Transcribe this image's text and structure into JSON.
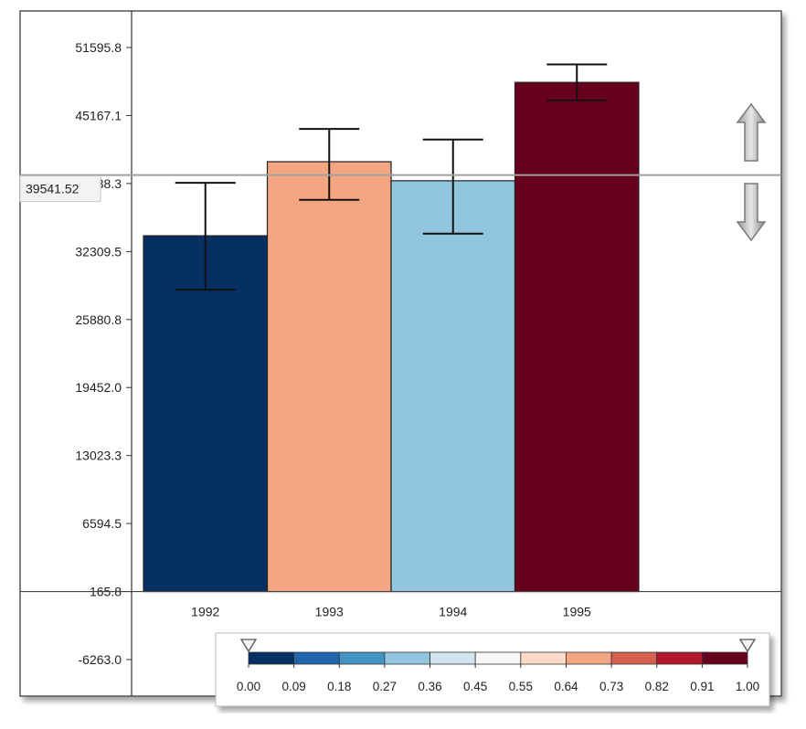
{
  "chart_data": {
    "type": "bar",
    "categories": [
      "1992",
      "1993",
      "1994",
      "1995"
    ],
    "values": [
      33800,
      40800,
      39000,
      48300
    ],
    "error_low": [
      28700,
      37200,
      34000,
      46600
    ],
    "error_high": [
      38800,
      43900,
      42900,
      50000
    ],
    "bar_colors": [
      "#053061",
      "#f4a582",
      "#92c5de",
      "#67001f"
    ],
    "ylim": [
      -6263.0,
      53200
    ],
    "y_ticks": [
      "51595.8",
      "45167.1",
      "38738.3",
      "32309.5",
      "25880.8",
      "19452.0",
      "13023.3",
      "6594.5",
      "165.8",
      "-6263.0"
    ],
    "y_tick_values": [
      51595.8,
      45167.1,
      38738.3,
      32309.5,
      25880.8,
      19452.0,
      13023.3,
      6594.5,
      165.8,
      -6263.0
    ],
    "baseline": 165.8,
    "threshold": {
      "value": 39541.52,
      "label": "39541.52",
      "color": "#a0a0a0"
    },
    "grid": false,
    "colorbar": {
      "placement": "bottom-right",
      "colors": [
        "#053061",
        "#2166ac",
        "#4393c3",
        "#92c5de",
        "#d1e5f0",
        "#f7f7f7",
        "#fddbc7",
        "#f4a582",
        "#d6604d",
        "#b2182b",
        "#67001f"
      ],
      "labels": [
        "0.00",
        "0.09",
        "0.18",
        "0.27",
        "0.36",
        "0.45",
        "0.55",
        "0.64",
        "0.73",
        "0.82",
        "0.91",
        "1.00"
      ],
      "range": [
        0,
        1
      ]
    }
  },
  "controls": {
    "up_arrow_icon": "arrow-up-icon",
    "down_arrow_icon": "arrow-down-icon"
  }
}
